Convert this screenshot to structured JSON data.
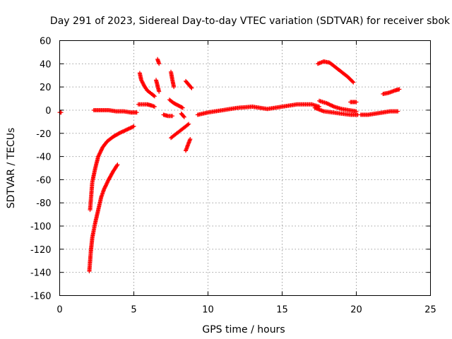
{
  "chart_data": {
    "type": "scatter",
    "title": "Day 291 of 2023, Sidereal Day-to-day VTEC variation (SDTVAR) for receiver sbok",
    "xlabel": "GPS time / hours",
    "ylabel": "SDTVAR / TECUs",
    "xlim": [
      0,
      25
    ],
    "ylim": [
      -160,
      60
    ],
    "xticks": [
      0,
      5,
      10,
      15,
      20,
      25
    ],
    "yticks": [
      -160,
      -140,
      -120,
      -100,
      -80,
      -60,
      -40,
      -20,
      0,
      20,
      40,
      60
    ],
    "xtick_labels": [
      "0",
      "5",
      "10",
      "15",
      "20",
      "25"
    ],
    "ytick_labels": [
      "-160",
      "-140",
      "-120",
      "-100",
      "-80",
      "-60",
      "-40",
      "-20",
      "0",
      "20",
      "40",
      "60"
    ],
    "grid": true,
    "marker": "+",
    "series_color": "#ff0000",
    "tracks": [
      {
        "name": "t1",
        "points": [
          [
            0.0,
            -2
          ],
          [
            0.1,
            -2
          ]
        ]
      },
      {
        "name": "t2",
        "points": [
          [
            2.05,
            -86
          ],
          [
            2.2,
            -62
          ],
          [
            2.4,
            -50
          ],
          [
            2.6,
            -40
          ],
          [
            2.9,
            -32
          ],
          [
            3.2,
            -27
          ],
          [
            3.6,
            -23
          ],
          [
            4.0,
            -20
          ],
          [
            4.5,
            -17
          ],
          [
            5.0,
            -14
          ]
        ]
      },
      {
        "name": "t3",
        "points": [
          [
            2.0,
            -139
          ],
          [
            2.1,
            -122
          ],
          [
            2.2,
            -110
          ],
          [
            2.4,
            -97
          ],
          [
            2.6,
            -86
          ],
          [
            2.8,
            -75
          ],
          [
            3.0,
            -68
          ],
          [
            3.3,
            -60
          ],
          [
            3.6,
            -53
          ],
          [
            3.9,
            -47
          ]
        ]
      },
      {
        "name": "t4",
        "points": [
          [
            2.3,
            0
          ],
          [
            2.8,
            0
          ],
          [
            3.3,
            0
          ],
          [
            3.8,
            -1
          ],
          [
            4.3,
            -1
          ],
          [
            4.8,
            -2
          ],
          [
            5.2,
            -2
          ]
        ]
      },
      {
        "name": "t5",
        "points": [
          [
            5.3,
            5
          ],
          [
            5.6,
            5
          ],
          [
            5.9,
            5
          ],
          [
            6.2,
            4
          ],
          [
            6.4,
            3
          ]
        ]
      },
      {
        "name": "t6",
        "points": [
          [
            5.4,
            32
          ],
          [
            5.5,
            26
          ],
          [
            5.7,
            21
          ],
          [
            5.9,
            17
          ],
          [
            6.2,
            14
          ],
          [
            6.4,
            12
          ]
        ]
      },
      {
        "name": "t7",
        "points": [
          [
            6.6,
            44
          ],
          [
            6.7,
            40
          ]
        ]
      },
      {
        "name": "t8",
        "points": [
          [
            6.5,
            26
          ],
          [
            6.6,
            21
          ],
          [
            6.7,
            16
          ]
        ]
      },
      {
        "name": "t9",
        "points": [
          [
            7.0,
            -4
          ],
          [
            7.3,
            -5
          ],
          [
            7.6,
            -5
          ]
        ]
      },
      {
        "name": "t10",
        "points": [
          [
            7.5,
            33
          ],
          [
            7.6,
            26
          ],
          [
            7.7,
            20
          ]
        ]
      },
      {
        "name": "t11",
        "points": [
          [
            7.4,
            9
          ],
          [
            7.7,
            6
          ],
          [
            8.0,
            4
          ],
          [
            8.3,
            2
          ]
        ]
      },
      {
        "name": "t12",
        "points": [
          [
            7.5,
            -24
          ],
          [
            7.8,
            -21
          ],
          [
            8.1,
            -18
          ],
          [
            8.4,
            -15
          ],
          [
            8.7,
            -12
          ]
        ]
      },
      {
        "name": "t13",
        "points": [
          [
            8.4,
            -6
          ],
          [
            8.2,
            -3
          ]
        ]
      },
      {
        "name": "t14",
        "points": [
          [
            8.5,
            -35
          ],
          [
            8.65,
            -30
          ],
          [
            8.8,
            -25
          ]
        ]
      },
      {
        "name": "t15",
        "points": [
          [
            8.5,
            25
          ],
          [
            8.7,
            22
          ],
          [
            8.9,
            19
          ]
        ]
      },
      {
        "name": "t16",
        "points": [
          [
            9.3,
            -4
          ],
          [
            10.0,
            -2
          ],
          [
            11.0,
            0
          ],
          [
            12.0,
            2
          ],
          [
            13.0,
            3
          ],
          [
            14.0,
            1
          ],
          [
            15.0,
            3
          ],
          [
            16.0,
            5
          ],
          [
            17.0,
            5
          ],
          [
            17.5,
            3
          ]
        ]
      },
      {
        "name": "t17",
        "points": [
          [
            17.4,
            40
          ],
          [
            17.8,
            42
          ],
          [
            18.2,
            41
          ],
          [
            18.6,
            37
          ],
          [
            19.0,
            33
          ],
          [
            19.4,
            29
          ],
          [
            19.8,
            24
          ]
        ]
      },
      {
        "name": "t18",
        "points": [
          [
            17.5,
            8
          ],
          [
            18.0,
            6
          ],
          [
            18.5,
            3
          ],
          [
            19.0,
            1
          ],
          [
            19.5,
            0
          ],
          [
            20.0,
            -1
          ]
        ]
      },
      {
        "name": "t19",
        "points": [
          [
            17.2,
            2
          ],
          [
            17.8,
            -1
          ],
          [
            18.4,
            -2
          ],
          [
            19.0,
            -3
          ],
          [
            19.6,
            -4
          ],
          [
            20.1,
            -4
          ]
        ]
      },
      {
        "name": "t20",
        "points": [
          [
            19.6,
            7
          ],
          [
            20.0,
            7
          ]
        ]
      },
      {
        "name": "t21",
        "points": [
          [
            20.3,
            -4
          ],
          [
            20.8,
            -4
          ],
          [
            21.3,
            -3
          ],
          [
            21.8,
            -2
          ],
          [
            22.3,
            -1
          ],
          [
            22.8,
            -1
          ]
        ]
      },
      {
        "name": "t22",
        "points": [
          [
            21.8,
            14
          ],
          [
            22.2,
            15
          ],
          [
            22.6,
            17
          ],
          [
            22.9,
            18
          ]
        ]
      }
    ]
  }
}
